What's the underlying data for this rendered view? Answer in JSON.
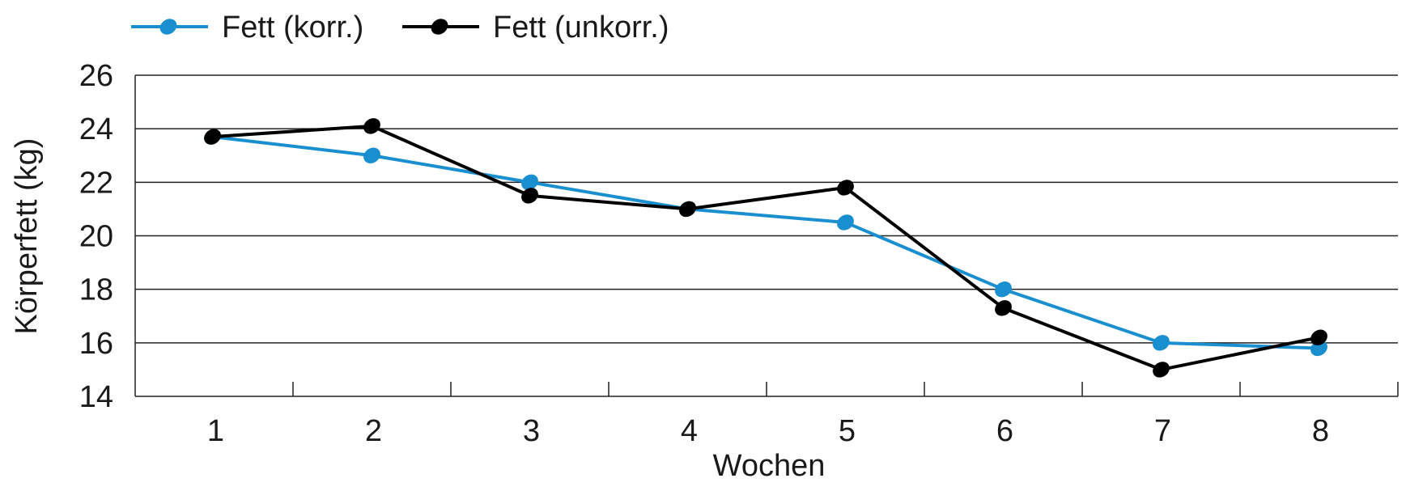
{
  "chart_data": {
    "type": "line",
    "xlabel": "Wochen",
    "ylabel": "Körperfett (kg)",
    "categories": [
      "1",
      "2",
      "3",
      "4",
      "5",
      "6",
      "7",
      "8"
    ],
    "ylim": [
      14,
      26
    ],
    "yticks": [
      "14",
      "16",
      "18",
      "20",
      "22",
      "24",
      "26"
    ],
    "grid": "horizontal",
    "legend": "top-left",
    "series": [
      {
        "name": "Fett (korr.)",
        "color": "#1a8fd0",
        "values": [
          23.7,
          23.0,
          22.0,
          21.0,
          20.5,
          18.0,
          16.0,
          15.8
        ]
      },
      {
        "name": "Fett (unkorr.)",
        "color": "#000000",
        "values": [
          23.7,
          24.1,
          21.5,
          21.0,
          21.8,
          17.3,
          15.0,
          16.2
        ]
      }
    ]
  }
}
